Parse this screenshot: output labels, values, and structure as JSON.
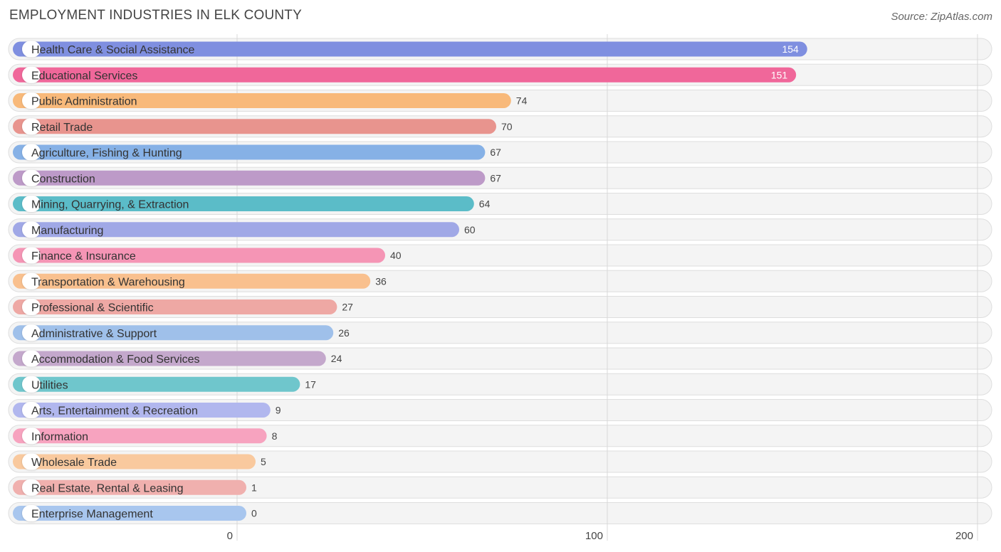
{
  "chart_data": {
    "type": "bar",
    "orientation": "horizontal",
    "title": "EMPLOYMENT INDUSTRIES IN ELK COUNTY",
    "source": "Source: ZipAtlas.com",
    "xlim": [
      0,
      200
    ],
    "xticks": [
      {
        "value": 0,
        "label": "0"
      },
      {
        "value": 100,
        "label": "100"
      },
      {
        "value": 200,
        "label": "200"
      }
    ],
    "categories": [
      "Health Care & Social Assistance",
      "Educational Services",
      "Public Administration",
      "Retail Trade",
      "Agriculture, Fishing & Hunting",
      "Construction",
      "Mining, Quarrying, & Extraction",
      "Manufacturing",
      "Finance & Insurance",
      "Transportation & Warehousing",
      "Professional & Scientific",
      "Administrative & Support",
      "Accommodation & Food Services",
      "Utilities",
      "Arts, Entertainment & Recreation",
      "Information",
      "Wholesale Trade",
      "Real Estate, Rental & Leasing",
      "Enterprise Management"
    ],
    "values": [
      154,
      151,
      74,
      70,
      67,
      67,
      64,
      60,
      40,
      36,
      27,
      26,
      24,
      17,
      9,
      8,
      5,
      1,
      0
    ],
    "value_labels": [
      "154",
      "151",
      "74",
      "70",
      "67",
      "67",
      "64",
      "60",
      "40",
      "36",
      "27",
      "26",
      "24",
      "17",
      "9",
      "8",
      "5",
      "1",
      "0"
    ],
    "colors": [
      "#7f8fe0",
      "#f0679a",
      "#f8b97a",
      "#e8948e",
      "#86b1e6",
      "#bd9ac8",
      "#5bbcc8",
      "#a0a8e6",
      "#f595b5",
      "#f9c08e",
      "#eea8a4",
      "#9fc0ea",
      "#c4a8cc",
      "#6fc6cc",
      "#b1b7ee",
      "#f7a3bf",
      "#f9c99e",
      "#f0b0ae",
      "#a8c6ee"
    ],
    "grid": true,
    "legend": "none"
  }
}
